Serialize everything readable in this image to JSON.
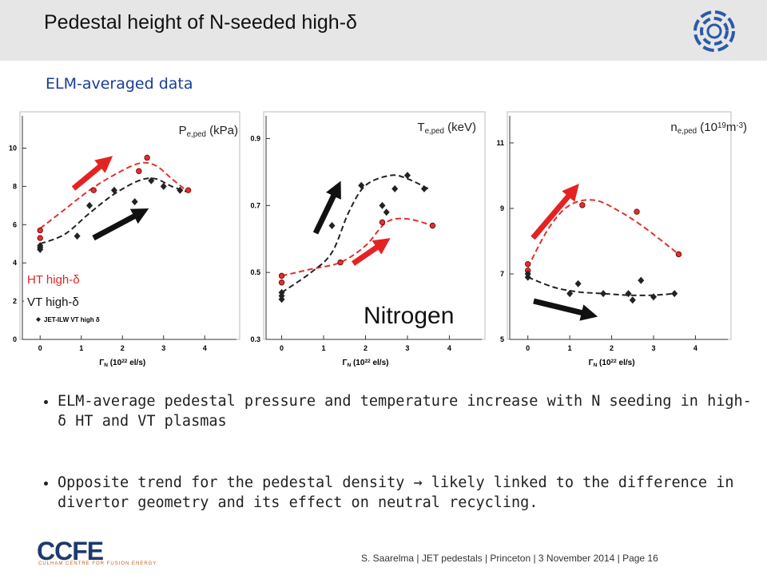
{
  "header": {
    "title": "Pedestal height of N-seeded high-δ"
  },
  "subtitle": "ELM-averaged data",
  "panels": [
    {
      "y_label": [
        {
          "t": "P"
        },
        {
          "t": "e,ped",
          "s": "sub"
        },
        {
          "t": " (kPa)"
        }
      ],
      "x_label": [
        {
          "t": "Γ"
        },
        {
          "t": "N",
          "s": "sub"
        },
        {
          "t": " (10"
        },
        {
          "t": "22",
          "s": "sup"
        },
        {
          "t": " el/s)"
        }
      ],
      "xlim": [
        -0.49,
        4.85
      ],
      "ylim": [
        0,
        11.9
      ],
      "xticks": [
        0,
        1,
        2,
        3,
        4
      ],
      "yticks": [
        0,
        2,
        4,
        6,
        8,
        10
      ],
      "series": [
        {
          "color": "#e03030",
          "x": [
            0,
            0,
            1.3,
            2.4,
            2.6,
            3.6
          ],
          "y": [
            5.7,
            5.3,
            7.8,
            8.8,
            9.5,
            7.8
          ]
        },
        {
          "color": "#222222",
          "x": [
            0,
            0,
            0,
            0.9,
            1.2,
            1.8,
            2.3,
            2.7,
            3.0,
            3.4
          ],
          "y": [
            4.9,
            4.7,
            4.8,
            5.4,
            7.0,
            7.8,
            7.2,
            8.3,
            8.0,
            7.8
          ]
        }
      ],
      "fits": [
        {
          "color": "#e03030",
          "x": [
            0,
            0.6,
            1.2,
            1.8,
            2.4,
            2.8,
            3.2,
            3.6
          ],
          "y": [
            5.8,
            6.8,
            7.8,
            8.6,
            9.2,
            9.1,
            8.4,
            7.7
          ]
        },
        {
          "color": "#222222",
          "x": [
            0,
            0.6,
            1.2,
            1.8,
            2.4,
            2.8,
            3.2,
            3.6
          ],
          "y": [
            5.0,
            5.5,
            6.6,
            7.6,
            8.3,
            8.4,
            8.0,
            7.7
          ]
        }
      ]
    },
    {
      "y_label": [
        {
          "t": "T"
        },
        {
          "t": "e,ped",
          "s": "sub"
        },
        {
          "t": " (keV)"
        }
      ],
      "x_label": [
        {
          "t": "Γ"
        },
        {
          "t": "N",
          "s": "sub"
        },
        {
          "t": " (10"
        },
        {
          "t": "22",
          "s": "sup"
        },
        {
          "t": " el/s)"
        }
      ],
      "xlim": [
        -0.43,
        4.85
      ],
      "ylim": [
        0.3,
        0.98
      ],
      "xticks": [
        0,
        1,
        2,
        3,
        4
      ],
      "yticks": [
        0.3,
        0.5,
        0.7,
        0.9
      ],
      "series": [
        {
          "color": "#e03030",
          "x": [
            0,
            0,
            1.4,
            2.4,
            3.6
          ],
          "y": [
            0.49,
            0.47,
            0.53,
            0.65,
            0.64
          ]
        },
        {
          "color": "#222222",
          "x": [
            0,
            0,
            0,
            1.2,
            1.9,
            2.4,
            2.5,
            2.7,
            3.0,
            3.4
          ],
          "y": [
            0.43,
            0.42,
            0.44,
            0.64,
            0.76,
            0.7,
            0.68,
            0.75,
            0.79,
            0.75
          ]
        }
      ],
      "fits": [
        {
          "color": "#e03030",
          "x": [
            0,
            0.7,
            1.4,
            2.0,
            2.5,
            3.0,
            3.6
          ],
          "y": [
            0.49,
            0.51,
            0.53,
            0.58,
            0.65,
            0.66,
            0.64
          ]
        },
        {
          "color": "#222222",
          "x": [
            0,
            0.7,
            1.2,
            1.6,
            2.0,
            2.6,
            3.0,
            3.5
          ],
          "y": [
            0.44,
            0.5,
            0.56,
            0.68,
            0.76,
            0.79,
            0.78,
            0.75
          ]
        }
      ]
    },
    {
      "y_label": [
        {
          "t": "n"
        },
        {
          "t": "e,ped",
          "s": "sub"
        },
        {
          "t": " (10"
        },
        {
          "t": "19",
          "s": "sup"
        },
        {
          "t": "m"
        },
        {
          "t": "-3",
          "s": "sup"
        },
        {
          "t": ")"
        }
      ],
      "x_label": [
        {
          "t": "Γ"
        },
        {
          "t": "N",
          "s": "sub"
        },
        {
          "t": " (10"
        },
        {
          "t": "22",
          "s": "sup"
        },
        {
          "t": " el/s)"
        }
      ],
      "xlim": [
        -0.49,
        4.85
      ],
      "ylim": [
        5,
        11.95
      ],
      "xticks": [
        0,
        1,
        2,
        3,
        4
      ],
      "yticks": [
        5,
        7,
        9,
        11
      ],
      "series": [
        {
          "color": "#e03030",
          "x": [
            0,
            0,
            1.3,
            2.6,
            3.6
          ],
          "y": [
            7.3,
            7.1,
            9.1,
            8.9,
            7.6
          ]
        },
        {
          "color": "#222222",
          "x": [
            0,
            0,
            1.0,
            1.2,
            1.8,
            2.4,
            2.5,
            2.7,
            3.0,
            3.5
          ],
          "y": [
            7.0,
            6.9,
            6.4,
            6.7,
            6.4,
            6.4,
            6.2,
            6.8,
            6.3,
            6.4
          ]
        }
      ],
      "fits": [
        {
          "color": "#e03030",
          "x": [
            0,
            0.5,
            1.0,
            1.6,
            2.2,
            2.8,
            3.6
          ],
          "y": [
            7.2,
            8.4,
            9.1,
            9.25,
            8.9,
            8.4,
            7.6
          ]
        },
        {
          "color": "#222222",
          "x": [
            0,
            0.6,
            1.2,
            1.8,
            2.4,
            3.0,
            3.5
          ],
          "y": [
            6.9,
            6.6,
            6.45,
            6.4,
            6.35,
            6.35,
            6.4
          ]
        }
      ]
    }
  ],
  "legend": {
    "ht": "HT high-δ",
    "vt": "VT high-δ",
    "jet": "JET-ILW VT high δ"
  },
  "annotation": "Nitrogen",
  "bullets": [
    "ELM-average pedestal pressure and temperature increase with N seeding in high-δ HT and VT plasmas",
    "Opposite trend for the pedestal density → likely linked to the difference in divertor geometry and its effect on neutral recycling."
  ],
  "footer": {
    "logo": "CCFE",
    "logo_sub": "CULHAM CENTRE FOR FUSION ENERGY",
    "text": "S. Saarelma | JET pedestals | Princeton | 3 November 2014 | Page 16"
  }
}
